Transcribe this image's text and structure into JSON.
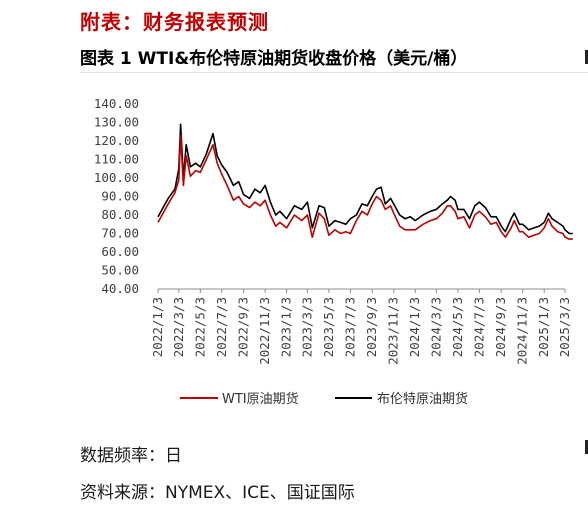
{
  "section_header": "附表：财务报表预测",
  "chart_title": "图表 1 WTI&布伦特原油期货收盘价格（美元/桶）",
  "notes": {
    "frequency": "数据频率：日",
    "source": "资料来源：NYMEX、ICE、国证国际"
  },
  "colors": {
    "header_red": "#c00000",
    "wti": "#c00000",
    "brent": "#000000"
  },
  "chart_data": {
    "type": "line",
    "title": "",
    "xlabel": "",
    "ylabel": "",
    "ylim": [
      40,
      140
    ],
    "yticks": [
      "140.00",
      "130.00",
      "120.00",
      "110.00",
      "100.00",
      "90.00",
      "80.00",
      "70.00",
      "60.00",
      "50.00",
      "40.00"
    ],
    "xticks": [
      "2022/1/3",
      "2022/3/3",
      "2022/5/3",
      "2022/7/3",
      "2022/9/3",
      "2022/11/3",
      "2023/1/3",
      "2023/3/3",
      "2023/5/3",
      "2023/7/3",
      "2023/9/3",
      "2023/11/3",
      "2024/1/3",
      "2024/3/3",
      "2024/5/3",
      "2024/7/3",
      "2024/9/3",
      "2024/11/3",
      "2025/1/3",
      "2025/3/3"
    ],
    "legend_position": "bottom",
    "grid": false,
    "x": [
      "2022/1/3",
      "2022/2/1",
      "2022/2/20",
      "2022/3/3",
      "2022/3/8",
      "2022/3/16",
      "2022/3/24",
      "2022/4/5",
      "2022/4/20",
      "2022/5/3",
      "2022/5/20",
      "2022/6/8",
      "2022/6/20",
      "2022/7/3",
      "2022/7/18",
      "2022/8/5",
      "2022/8/20",
      "2022/9/3",
      "2022/9/20",
      "2022/10/5",
      "2022/10/20",
      "2022/11/3",
      "2022/11/18",
      "2022/12/3",
      "2022/12/15",
      "2023/1/3",
      "2023/1/25",
      "2023/2/15",
      "2023/3/3",
      "2023/3/17",
      "2023/4/5",
      "2023/4/20",
      "2023/5/3",
      "2023/5/20",
      "2023/6/5",
      "2023/6/20",
      "2023/7/3",
      "2023/7/20",
      "2023/8/5",
      "2023/8/20",
      "2023/9/3",
      "2023/9/15",
      "2023/9/28",
      "2023/10/10",
      "2023/10/25",
      "2023/11/3",
      "2023/11/20",
      "2023/12/5",
      "2023/12/20",
      "2024/1/3",
      "2024/1/25",
      "2024/2/15",
      "2024/3/3",
      "2024/3/20",
      "2024/4/3",
      "2024/4/12",
      "2024/4/25",
      "2024/5/3",
      "2024/5/20",
      "2024/6/5",
      "2024/6/20",
      "2024/7/3",
      "2024/7/20",
      "2024/8/5",
      "2024/8/20",
      "2024/9/3",
      "2024/9/15",
      "2024/10/1",
      "2024/10/10",
      "2024/10/25",
      "2024/11/3",
      "2024/11/20",
      "2024/12/5",
      "2024/12/20",
      "2025/1/3",
      "2025/1/15",
      "2025/1/25",
      "2025/2/10",
      "2025/2/25",
      "2025/3/3",
      "2025/3/15",
      "2025/3/25"
    ],
    "series": [
      {
        "name": "WTI原油期货",
        "color": "#c00000",
        "values": [
          76,
          86,
          92,
          99,
          123,
          96,
          112,
          101,
          104,
          103,
          110,
          118,
          108,
          102,
          96,
          88,
          90,
          86,
          84,
          87,
          85,
          88,
          80,
          74,
          76,
          73,
          80,
          77,
          80,
          68,
          81,
          78,
          69,
          72,
          70,
          71,
          70,
          77,
          82,
          80,
          86,
          90,
          88,
          83,
          85,
          81,
          74,
          72,
          72,
          72,
          75,
          77,
          78,
          81,
          85,
          85,
          82,
          78,
          79,
          73,
          80,
          82,
          79,
          75,
          76,
          71,
          68,
          73,
          77,
          71,
          71,
          68,
          69,
          70,
          73,
          78,
          74,
          71,
          70,
          68,
          67,
          67
        ]
      },
      {
        "name": "布伦特原油期货",
        "color": "#000000",
        "values": [
          79,
          89,
          94,
          105,
          129,
          100,
          118,
          106,
          108,
          106,
          113,
          124,
          112,
          107,
          103,
          96,
          98,
          91,
          89,
          94,
          92,
          96,
          87,
          80,
          82,
          78,
          85,
          83,
          87,
          73,
          85,
          84,
          74,
          77,
          76,
          75,
          78,
          80,
          86,
          85,
          90,
          94,
          95,
          86,
          89,
          86,
          80,
          78,
          79,
          77,
          80,
          82,
          83,
          86,
          88,
          90,
          88,
          83,
          83,
          78,
          85,
          87,
          84,
          79,
          79,
          74,
          71,
          78,
          81,
          75,
          75,
          72,
          73,
          74,
          76,
          81,
          78,
          76,
          74,
          72,
          70,
          70
        ]
      }
    ]
  }
}
